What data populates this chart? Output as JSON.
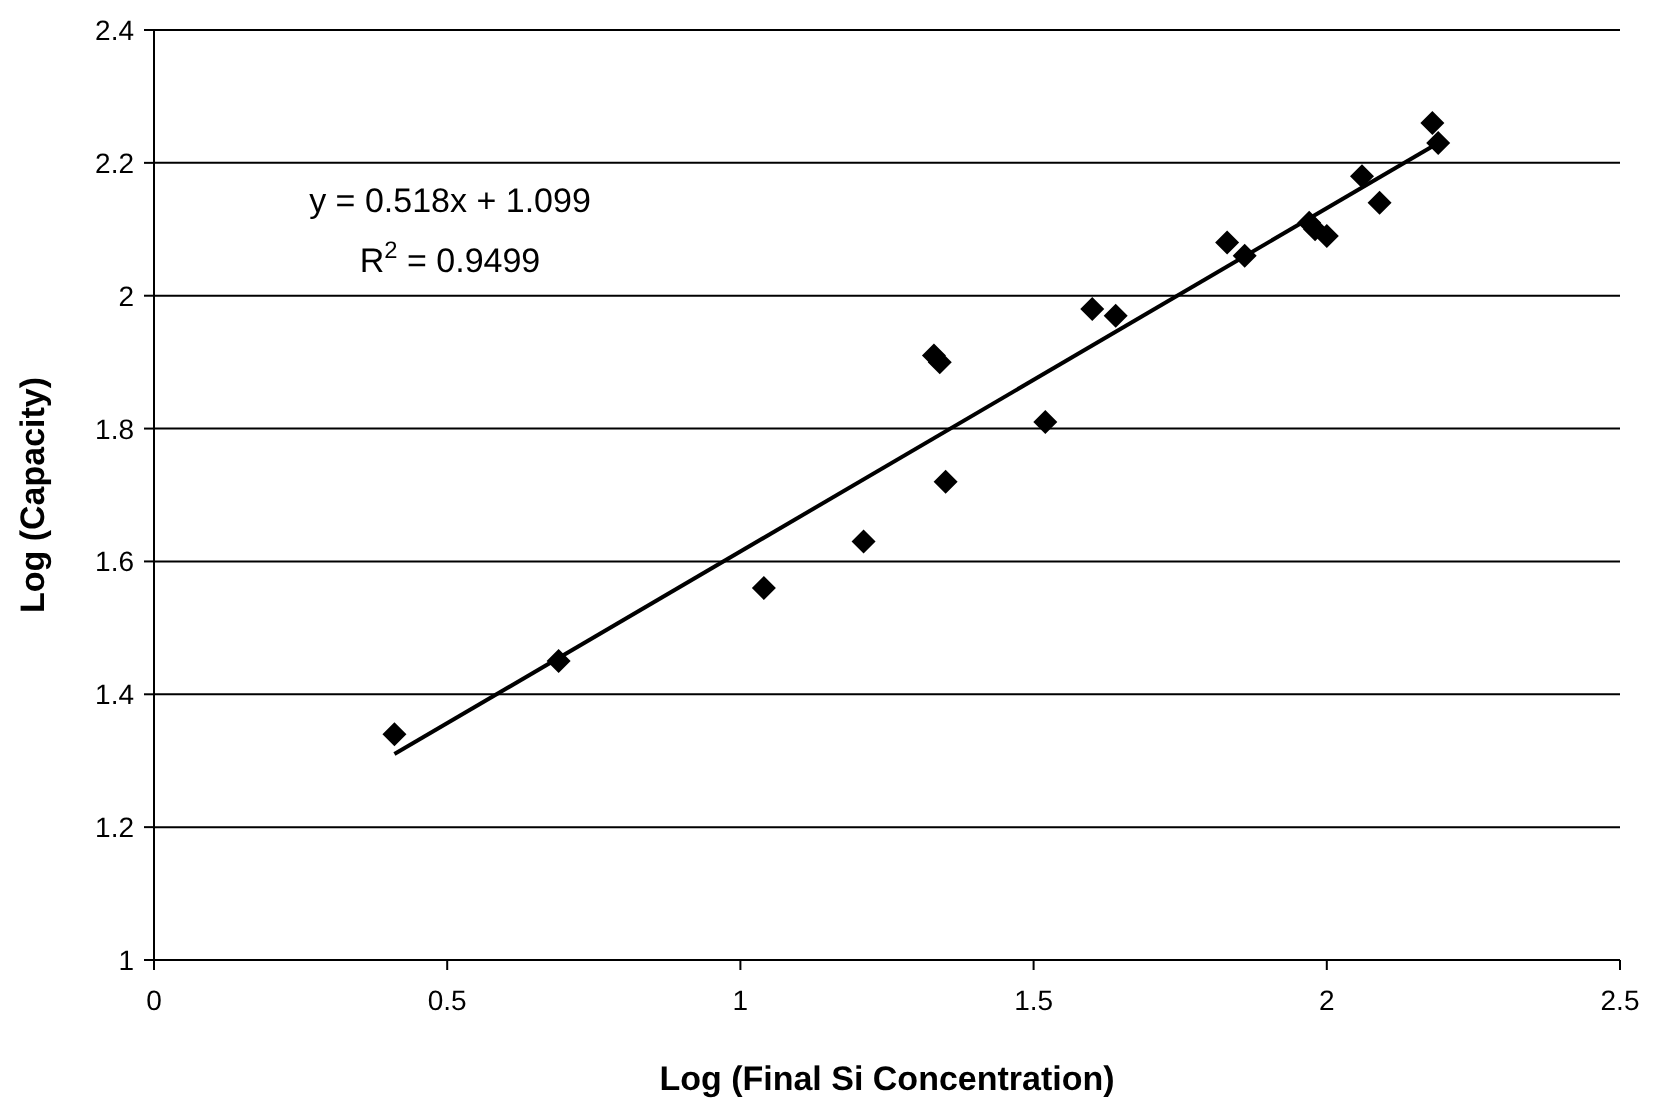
{
  "chart_data": {
    "type": "scatter",
    "xlabel": "Log (Final Si Concentration)",
    "ylabel": "Log (Capacity)",
    "xlim": [
      0,
      2.5
    ],
    "xticks": [
      0,
      0.5,
      1,
      1.5,
      2,
      2.5
    ],
    "ylim": [
      1,
      2.4
    ],
    "yticks": [
      1,
      1.2,
      1.4,
      1.6,
      1.8,
      2,
      2.2,
      2.4
    ],
    "grid": "y",
    "marker": "diamond",
    "annotations": [
      "y = 0.518x + 1.099",
      "R$^{2}$ = 0.9499"
    ],
    "series": [
      {
        "color": "#000000",
        "x": [
          0.41,
          0.69,
          1.04,
          1.21,
          1.33,
          1.34,
          1.35,
          1.52,
          1.6,
          1.64,
          1.83,
          1.86,
          1.97,
          1.98,
          2.0,
          2.06,
          2.09,
          2.18,
          2.19
        ],
        "values": [
          1.34,
          1.45,
          1.56,
          1.63,
          1.91,
          1.9,
          1.72,
          1.81,
          1.98,
          1.97,
          2.08,
          2.06,
          2.11,
          2.1,
          2.09,
          2.18,
          2.14,
          2.26,
          2.23
        ]
      },
      {
        "type": "line",
        "color": "#000000",
        "line_style": "solid",
        "marker": "none",
        "x": [
          0.41,
          2.19
        ],
        "values": [
          1.31,
          2.23
        ]
      }
    ]
  }
}
